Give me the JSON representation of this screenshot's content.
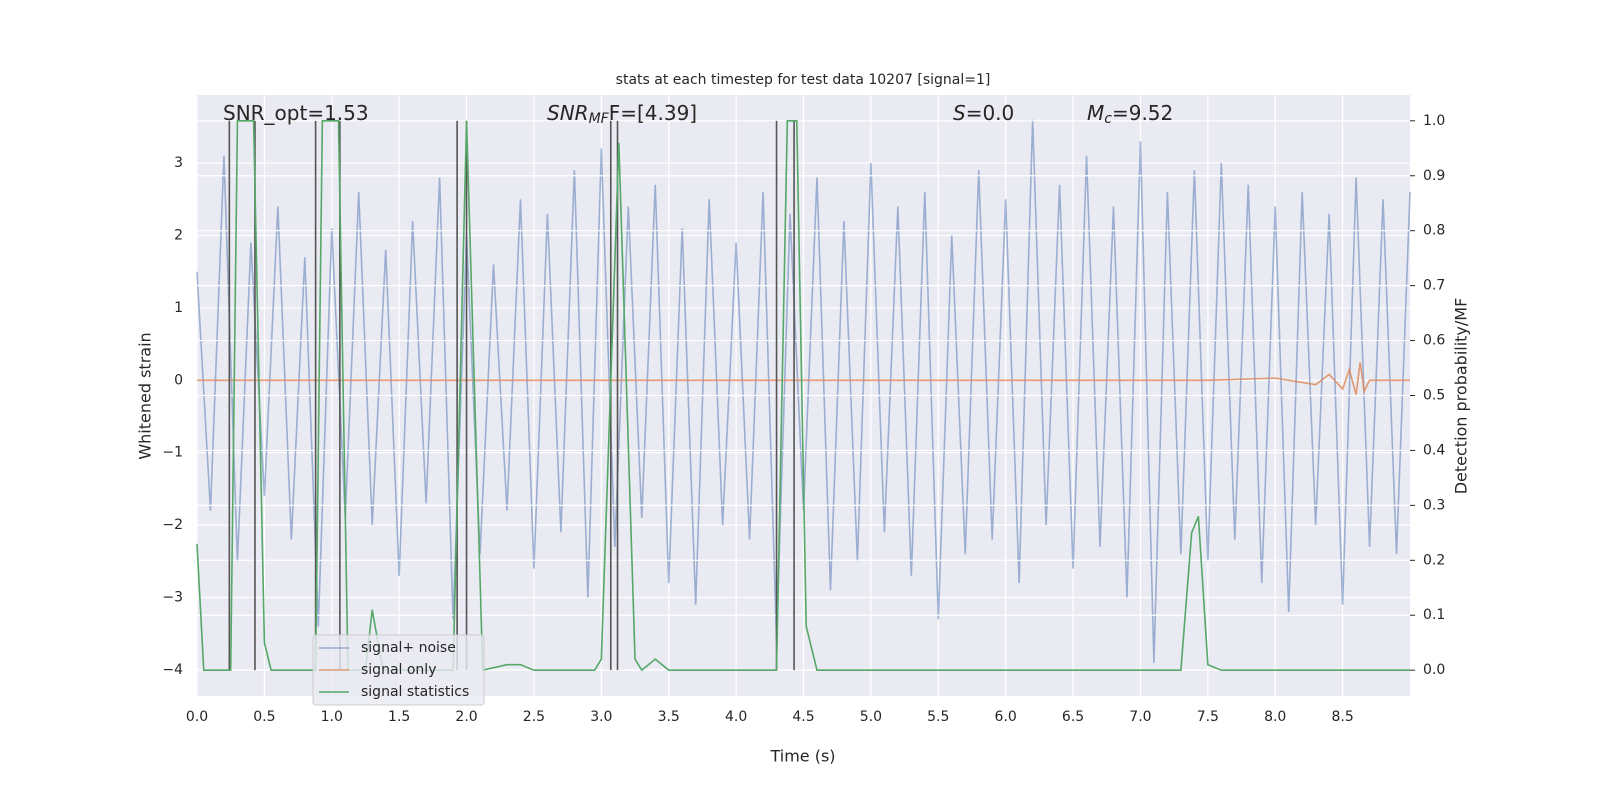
{
  "chart_data": {
    "type": "line",
    "title": "stats at each timestep for test data 10207 [signal=1]",
    "x_label": "Time (s)",
    "y_label": "Whitened strain",
    "y2_label": "Detection probability/MF",
    "xlim": [
      0,
      9.0
    ],
    "ylim": [
      -4.36,
      3.94
    ],
    "y2lim": [
      -0.047,
      1.047
    ],
    "xticks": [
      {
        "value": 0,
        "label": "0.0"
      },
      {
        "value": 0.5,
        "label": "0.5"
      },
      {
        "value": 1,
        "label": "1.0"
      },
      {
        "value": 1.5,
        "label": "1.5"
      },
      {
        "value": 2,
        "label": "2.0"
      },
      {
        "value": 2.5,
        "label": "2.5"
      },
      {
        "value": 3,
        "label": "3.0"
      },
      {
        "value": 3.5,
        "label": "3.5"
      },
      {
        "value": 4,
        "label": "4.0"
      },
      {
        "value": 4.5,
        "label": "4.5"
      },
      {
        "value": 5,
        "label": "5.0"
      },
      {
        "value": 5.5,
        "label": "5.5"
      },
      {
        "value": 6,
        "label": "6.0"
      },
      {
        "value": 6.5,
        "label": "6.5"
      },
      {
        "value": 7,
        "label": "7.0"
      },
      {
        "value": 7.5,
        "label": "7.5"
      },
      {
        "value": 8,
        "label": "8.0"
      },
      {
        "value": 8.5,
        "label": "8.5"
      }
    ],
    "yticks": [
      {
        "value": -4,
        "label": "−4"
      },
      {
        "value": -3,
        "label": "−3"
      },
      {
        "value": -2,
        "label": "−2"
      },
      {
        "value": -1,
        "label": "−1"
      },
      0,
      1,
      2,
      3
    ],
    "y2ticks": [
      {
        "value": 0,
        "label": "0.0"
      },
      {
        "value": 0.1,
        "label": "0.1"
      },
      {
        "value": 0.2,
        "label": "0.2"
      },
      {
        "value": 0.3,
        "label": "0.3"
      },
      {
        "value": 0.4,
        "label": "0.4"
      },
      {
        "value": 0.5,
        "label": "0.5"
      },
      {
        "value": 0.6,
        "label": "0.6"
      },
      {
        "value": 0.7,
        "label": "0.7"
      },
      {
        "value": 0.8,
        "label": "0.8"
      },
      {
        "value": 0.9,
        "label": "0.9"
      },
      {
        "value": 1,
        "label": "1.0"
      }
    ],
    "grid": true,
    "legend": "lower left",
    "annotations": [
      {
        "text": "SNR_opt=1.53"
      },
      {
        "main": "SNR",
        "sub": "MF",
        "tail": "F=[4.39]"
      },
      {
        "main": "S",
        "tail": "=0.0"
      },
      {
        "main": "M",
        "sub": "c",
        "tail": "=9.52"
      }
    ],
    "series": [
      {
        "name": "signal+ noise",
        "color": "#4c72b0",
        "opacity": 0.5,
        "x": [
          0,
          0.1,
          0.2,
          0.3,
          0.4,
          0.5,
          0.6,
          0.7,
          0.8,
          0.9,
          1,
          1.1,
          1.2,
          1.3,
          1.4,
          1.5,
          1.6,
          1.7,
          1.8,
          1.9,
          2,
          2.1,
          2.2,
          2.3,
          2.4,
          2.5,
          2.6,
          2.7,
          2.8,
          2.9,
          3,
          3.1,
          3.2,
          3.3,
          3.4,
          3.5,
          3.6,
          3.7,
          3.8,
          3.9,
          4,
          4.1,
          4.2,
          4.3,
          4.4,
          4.5,
          4.6,
          4.7,
          4.8,
          4.9,
          5,
          5.1,
          5.2,
          5.3,
          5.4,
          5.5,
          5.6,
          5.7,
          5.8,
          5.9,
          6,
          6.1,
          6.2,
          6.3,
          6.4,
          6.5,
          6.6,
          6.7,
          6.8,
          6.9,
          7,
          7.1,
          7.2,
          7.3,
          7.4,
          7.5,
          7.6,
          7.7,
          7.8,
          7.9,
          8,
          8.1,
          8.2,
          8.3,
          8.4,
          8.5,
          8.6,
          8.7,
          8.8,
          8.9,
          9
        ],
        "values": [
          1.5,
          -1.8,
          3.1,
          -2.5,
          1.9,
          -1.6,
          2.4,
          -2.2,
          1.7,
          -3.4,
          2.1,
          -1.9,
          2.6,
          -2.0,
          1.8,
          -2.7,
          2.2,
          -1.7,
          2.8,
          -3.3,
          2.0,
          -2.4,
          1.6,
          -1.8,
          2.5,
          -2.6,
          2.3,
          -2.1,
          2.9,
          -3.0,
          3.2,
          -2.3,
          2.4,
          -1.9,
          2.7,
          -2.8,
          2.1,
          -3.1,
          2.5,
          -2.0,
          1.9,
          -2.2,
          2.6,
          -3.6,
          2.3,
          -1.8,
          2.8,
          -2.9,
          2.2,
          -2.5,
          3.0,
          -2.1,
          2.4,
          -2.7,
          2.6,
          -3.3,
          2.0,
          -2.4,
          2.9,
          -2.2,
          2.5,
          -2.8,
          3.6,
          -2.0,
          2.7,
          -2.6,
          3.1,
          -2.3,
          2.4,
          -3.0,
          3.3,
          -3.9,
          2.6,
          -2.4,
          2.9,
          -2.5,
          3.0,
          -2.2,
          2.7,
          -2.8,
          2.4,
          -3.2,
          2.6,
          -2.0,
          2.3,
          -3.1,
          2.8,
          -2.3,
          2.5,
          -2.4,
          2.6
        ]
      },
      {
        "name": "signal only",
        "color": "#dd8452",
        "opacity": 0.8,
        "x": [
          0,
          7.5,
          8.0,
          8.3,
          8.4,
          8.5,
          8.55,
          8.6,
          8.63,
          8.66,
          8.7,
          9.0
        ],
        "values": [
          0,
          0,
          0.03,
          -0.06,
          0.08,
          -0.12,
          0.15,
          -0.2,
          0.25,
          -0.15,
          0,
          0
        ]
      },
      {
        "name": "signal statistics",
        "color": "#55a868",
        "opacity": 1,
        "axis": "y2",
        "x": [
          0,
          0.05,
          0.25,
          0.3,
          0.42,
          0.5,
          0.55,
          0.88,
          0.93,
          1.05,
          1.12,
          1.25,
          1.3,
          1.38,
          1.9,
          2.0,
          2.12,
          2.3,
          2.4,
          2.5,
          2.95,
          3.0,
          3.13,
          3.25,
          3.3,
          3.4,
          3.5,
          4.3,
          4.38,
          4.45,
          4.52,
          4.6,
          7.3,
          7.38,
          7.43,
          7.5,
          7.6,
          9.0
        ],
        "values": [
          0.23,
          0,
          0,
          1,
          1,
          0.05,
          0,
          0,
          1,
          1,
          0,
          0,
          0.11,
          0,
          0,
          1,
          0,
          0.01,
          0.01,
          0,
          0,
          0.02,
          0.96,
          0.02,
          0,
          0.02,
          0,
          0,
          1,
          1,
          0.08,
          0,
          0,
          0.25,
          0.28,
          0.01,
          0,
          0
        ]
      }
    ],
    "vlines": {
      "color": "#555555",
      "axis": "y2",
      "ymin": 0,
      "ymax": 1,
      "x": [
        0.24,
        0.43,
        0.88,
        1.06,
        1.93,
        2.0,
        3.07,
        3.12,
        4.3,
        4.43
      ]
    }
  }
}
